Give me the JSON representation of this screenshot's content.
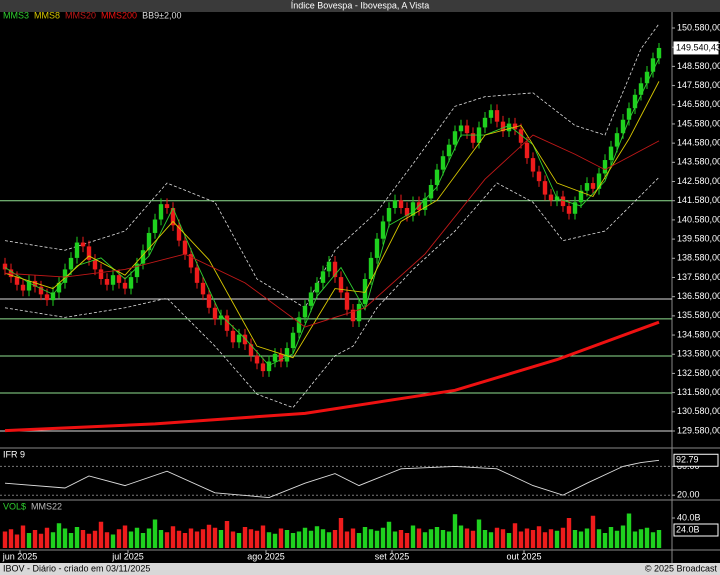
{
  "title": "Índice Bovespa - Ibovespa, A Vista",
  "footer_left": "IBOV - Diário - criado em 03/11/2025",
  "footer_right": "© 2025 Broadcast",
  "chart_data": [
    {
      "type": "candlestick",
      "up_color": "#1fd11f",
      "down_color": "#ee1c1c",
      "open": [
        138300,
        138000,
        137600,
        137200,
        136900,
        137400,
        137100,
        136700,
        136400,
        136800,
        137300,
        138000,
        138600,
        139400,
        139200,
        138500,
        138000,
        137500,
        137200,
        137700,
        137300,
        137000,
        137600,
        138300,
        139000,
        139900,
        140600,
        141400,
        141200,
        140300,
        139500,
        138800,
        138100,
        137300,
        136700,
        136000,
        135400,
        135600,
        134800,
        134200,
        134600,
        134100,
        133500,
        133100,
        132700,
        133200,
        133600,
        133200,
        133900,
        134700,
        135500,
        136100,
        136800,
        137300,
        137900,
        138400,
        137600,
        136800,
        135900,
        135300,
        136200,
        137500,
        138600,
        139600,
        140500,
        141200,
        141600,
        141200,
        140800,
        141500,
        141100,
        141700,
        142400,
        143200,
        143900,
        144500,
        145200,
        145500,
        145100,
        144600,
        145400,
        145900,
        146300,
        145700,
        145200,
        145600,
        145300,
        144600,
        143800,
        143100,
        142600,
        141900,
        141600,
        141800,
        141300,
        140900,
        141500,
        142100,
        142500,
        142200,
        143000,
        143700,
        144400,
        145100,
        145800,
        146400,
        147100,
        147700,
        148300,
        149000
      ],
      "high": [
        138600,
        138300,
        137900,
        137500,
        137700,
        137700,
        137400,
        137000,
        137100,
        137600,
        138300,
        138900,
        139700,
        139700,
        139500,
        138800,
        138300,
        137800,
        138000,
        138000,
        137600,
        137900,
        138600,
        139300,
        140200,
        140900,
        141700,
        141700,
        141500,
        140600,
        139800,
        139100,
        138400,
        137600,
        137000,
        136300,
        135900,
        135900,
        135100,
        134900,
        134900,
        134400,
        133800,
        133400,
        133500,
        133900,
        133900,
        134200,
        135000,
        135800,
        136400,
        137100,
        137600,
        138200,
        138700,
        138700,
        137900,
        137100,
        136200,
        136500,
        137800,
        138900,
        139900,
        140800,
        141500,
        141900,
        141900,
        141500,
        141800,
        141800,
        142000,
        142700,
        143500,
        144200,
        144800,
        145500,
        145800,
        145800,
        145400,
        145700,
        146200,
        146600,
        146600,
        146000,
        145900,
        145900,
        145600,
        144900,
        144100,
        143400,
        142900,
        142200,
        142100,
        142100,
        141600,
        141800,
        142400,
        142800,
        142800,
        143300,
        144000,
        144700,
        145400,
        146100,
        146700,
        147400,
        148000,
        148600,
        149300,
        149800
      ],
      "low": [
        137700,
        137300,
        136900,
        136600,
        136600,
        136800,
        136400,
        136100,
        136100,
        136500,
        137000,
        137700,
        138300,
        138900,
        138200,
        137700,
        137200,
        136900,
        136900,
        137000,
        136700,
        136700,
        137300,
        138000,
        138700,
        139600,
        140300,
        140900,
        140000,
        139200,
        138500,
        137800,
        137000,
        136400,
        135700,
        135100,
        135100,
        134500,
        133900,
        133900,
        133800,
        133200,
        132800,
        132400,
        132400,
        132900,
        132900,
        132900,
        133600,
        134400,
        135200,
        135800,
        136500,
        137000,
        137600,
        137300,
        136500,
        135600,
        135000,
        135000,
        135900,
        137200,
        138300,
        139300,
        140200,
        140900,
        140900,
        140500,
        140500,
        140800,
        140800,
        141400,
        142100,
        142900,
        143600,
        144200,
        144900,
        144800,
        144300,
        144300,
        145100,
        145600,
        145400,
        144900,
        144900,
        145000,
        144300,
        143500,
        142800,
        142300,
        141600,
        141300,
        141300,
        141000,
        140600,
        140600,
        141200,
        141800,
        141900,
        141900,
        142700,
        143400,
        144100,
        144800,
        145500,
        146100,
        146800,
        147400,
        148000,
        148700
      ],
      "close": [
        138000,
        137600,
        137200,
        136900,
        137400,
        137100,
        136700,
        136400,
        136800,
        137300,
        138000,
        138600,
        139400,
        139200,
        138500,
        138000,
        137500,
        137200,
        137700,
        137300,
        137000,
        137600,
        138300,
        139000,
        139900,
        140600,
        141400,
        141200,
        140300,
        139500,
        138800,
        138100,
        137300,
        136700,
        136000,
        135400,
        135600,
        134800,
        134200,
        134600,
        134100,
        133500,
        133100,
        132700,
        133200,
        133600,
        133200,
        133900,
        134700,
        135500,
        136100,
        136800,
        137300,
        137900,
        138400,
        137600,
        136800,
        135900,
        135300,
        136200,
        137500,
        138600,
        139600,
        140500,
        141200,
        141600,
        141200,
        140800,
        141500,
        141100,
        141700,
        142400,
        143200,
        143900,
        144500,
        145200,
        145500,
        145100,
        144600,
        145400,
        145900,
        146300,
        145700,
        145200,
        145600,
        145300,
        144600,
        143800,
        143100,
        142600,
        141900,
        141600,
        141800,
        141300,
        140900,
        141500,
        142100,
        142500,
        142200,
        143000,
        143700,
        144400,
        145100,
        145800,
        146400,
        147100,
        147700,
        148300,
        149000,
        149540.43
      ],
      "lines": [
        {
          "name": "MMS3",
          "color": "#2fcf2f",
          "x": [
            0,
            4,
            8,
            12,
            16,
            20,
            24,
            28,
            32,
            36,
            40,
            44,
            48,
            52,
            56,
            60,
            64,
            68,
            72,
            76,
            80,
            84,
            88,
            92,
            96,
            100,
            104,
            109
          ],
          "values": [
            138100,
            137300,
            136700,
            138200,
            138600,
            137500,
            138700,
            141200,
            138300,
            135600,
            134400,
            133000,
            133600,
            136600,
            138100,
            135900,
            140300,
            141000,
            142300,
            145000,
            145000,
            145500,
            144500,
            141700,
            141300,
            142600,
            145800,
            149000
          ]
        },
        {
          "name": "MMS8",
          "color": "#d8c800",
          "x": [
            0,
            8,
            14,
            20,
            28,
            34,
            42,
            48,
            55,
            60,
            66,
            72,
            80,
            86,
            92,
            98,
            104,
            109
          ],
          "values": [
            137800,
            137000,
            138700,
            137700,
            140500,
            138500,
            134000,
            133400,
            137000,
            136800,
            140500,
            141600,
            145000,
            145500,
            142500,
            141800,
            144800,
            147800
          ]
        },
        {
          "name": "MMS20",
          "color": "#c01818",
          "x": [
            0,
            10,
            20,
            30,
            40,
            50,
            60,
            70,
            80,
            88,
            95,
            100,
            109
          ],
          "values": [
            137800,
            137600,
            138000,
            138800,
            137300,
            135000,
            136000,
            138800,
            142700,
            145000,
            144000,
            143200,
            144700
          ]
        },
        {
          "name": "MMS200",
          "color": "#ee1111",
          "width": 3,
          "x": [
            0,
            25,
            50,
            75,
            92,
            109
          ],
          "values": [
            129600,
            129950,
            130500,
            131700,
            133300,
            135250
          ]
        }
      ],
      "band": {
        "name": "BB9±2,00",
        "color": "#dddddd",
        "upper": {
          "x": [
            0,
            10,
            20,
            27,
            35,
            42,
            50,
            55,
            62,
            68,
            75,
            80,
            88,
            95,
            100,
            106,
            109
          ],
          "values": [
            139500,
            139000,
            140000,
            142500,
            141500,
            137500,
            136000,
            139000,
            141000,
            143500,
            146500,
            147000,
            147200,
            145500,
            145000,
            149500,
            150800
          ]
        },
        "lower": {
          "x": [
            0,
            10,
            20,
            27,
            35,
            42,
            48,
            55,
            58,
            62,
            68,
            75,
            82,
            88,
            93,
            100,
            109
          ],
          "values": [
            136000,
            135500,
            136000,
            136500,
            134000,
            131500,
            130800,
            133500,
            134000,
            136000,
            138000,
            140000,
            142500,
            141500,
            139500,
            140000,
            142800
          ]
        }
      },
      "hlines": [
        {
          "value": 141580,
          "color": "#8fe08f"
        },
        {
          "value": 136460,
          "color": "#dddddd"
        },
        {
          "value": 135420,
          "color": "#8fe08f"
        },
        {
          "value": 133490,
          "color": "#8fe08f"
        },
        {
          "value": 131560,
          "color": "#8fe08f"
        },
        {
          "value": 129580,
          "color": "#dddddd"
        }
      ],
      "last_value": {
        "value": 149540.43,
        "label": "149.540,43"
      },
      "xlim": [
        0,
        110
      ],
      "xticks": [
        {
          "value": 3,
          "label": "jun 2025"
        },
        {
          "value": 21,
          "label": "jul 2025"
        },
        {
          "value": 44,
          "label": "ago 2025"
        },
        {
          "value": 65,
          "label": "set 2025"
        },
        {
          "value": 87,
          "label": "out 2025"
        }
      ],
      "ylim": [
        128850,
        151310
      ],
      "yticks": [
        {
          "value": 150580,
          "label": "150.580,00"
        },
        {
          "value": 149580,
          "label": "149.580,00"
        },
        {
          "value": 148580,
          "label": "148.580,00"
        },
        {
          "value": 147580,
          "label": "147.580,00"
        },
        {
          "value": 146580,
          "label": "146.580,00"
        },
        {
          "value": 145580,
          "label": "145.580,00"
        },
        {
          "value": 144580,
          "label": "144.580,00"
        },
        {
          "value": 143580,
          "label": "143.580,00"
        },
        {
          "value": 142580,
          "label": "142.580,00"
        },
        {
          "value": 141580,
          "label": "141.580,00"
        },
        {
          "value": 140580,
          "label": "140.580,00"
        },
        {
          "value": 139580,
          "label": "139.580,00"
        },
        {
          "value": 138580,
          "label": "138.580,00"
        },
        {
          "value": 137580,
          "label": "137.580,00"
        },
        {
          "value": 136580,
          "label": "136.580,00"
        },
        {
          "value": 135580,
          "label": "135.580,00"
        },
        {
          "value": 134580,
          "label": "134.580,00"
        },
        {
          "value": 133580,
          "label": "133.580,00"
        },
        {
          "value": 132580,
          "label": "132.580,00"
        },
        {
          "value": 131580,
          "label": "131.580,00"
        },
        {
          "value": 130580,
          "label": "130.580,00"
        },
        {
          "value": 129580,
          "label": "129.580,00"
        }
      ]
    },
    {
      "type": "line",
      "title": "IFR 9",
      "color": "#dddddd",
      "x": [
        0,
        10,
        14,
        20,
        27,
        35,
        44,
        50,
        55,
        59,
        66,
        75,
        82,
        88,
        93,
        97,
        103,
        106,
        109
      ],
      "values": [
        45,
        35,
        60,
        40,
        70,
        25,
        15,
        45,
        65,
        40,
        75,
        80,
        75,
        40,
        20,
        45,
        80,
        88,
        92.79
      ],
      "ylim": [
        10,
        110
      ],
      "yticks": [
        {
          "value": 80,
          "label": "80.00"
        },
        {
          "value": 20,
          "label": "20.00"
        }
      ],
      "last_value": {
        "value": 92.79,
        "label": "92.79"
      }
    },
    {
      "type": "bar",
      "title": "VOL$",
      "subtitle": "MMS22",
      "values": [
        22,
        25,
        18,
        30,
        20,
        24,
        19,
        27,
        21,
        33,
        26,
        20,
        28,
        24,
        19,
        23,
        35,
        21,
        18,
        25,
        30,
        22,
        27,
        20,
        26,
        38,
        24,
        21,
        29,
        23,
        20,
        26,
        22,
        25,
        31,
        27,
        24,
        36,
        22,
        20,
        28,
        25,
        23,
        30,
        21,
        19,
        26,
        24,
        20,
        22,
        27,
        23,
        29,
        25,
        21,
        24,
        40,
        22,
        26,
        20,
        28,
        25,
        23,
        27,
        35,
        22,
        24,
        20,
        30,
        26,
        21,
        25,
        28,
        24,
        22,
        45,
        30,
        26,
        23,
        38,
        24,
        21,
        27,
        25,
        20,
        33,
        22,
        26,
        24,
        29,
        21,
        25,
        23,
        27,
        40,
        24,
        22,
        26,
        43,
        25,
        20,
        28,
        23,
        30,
        46,
        22,
        25,
        27,
        21,
        24
      ],
      "ylim": [
        0,
        60
      ],
      "yticks": [
        {
          "value": 40,
          "label": "40.0B"
        }
      ],
      "last_value": {
        "value": 24,
        "label": "24.0B"
      }
    }
  ]
}
